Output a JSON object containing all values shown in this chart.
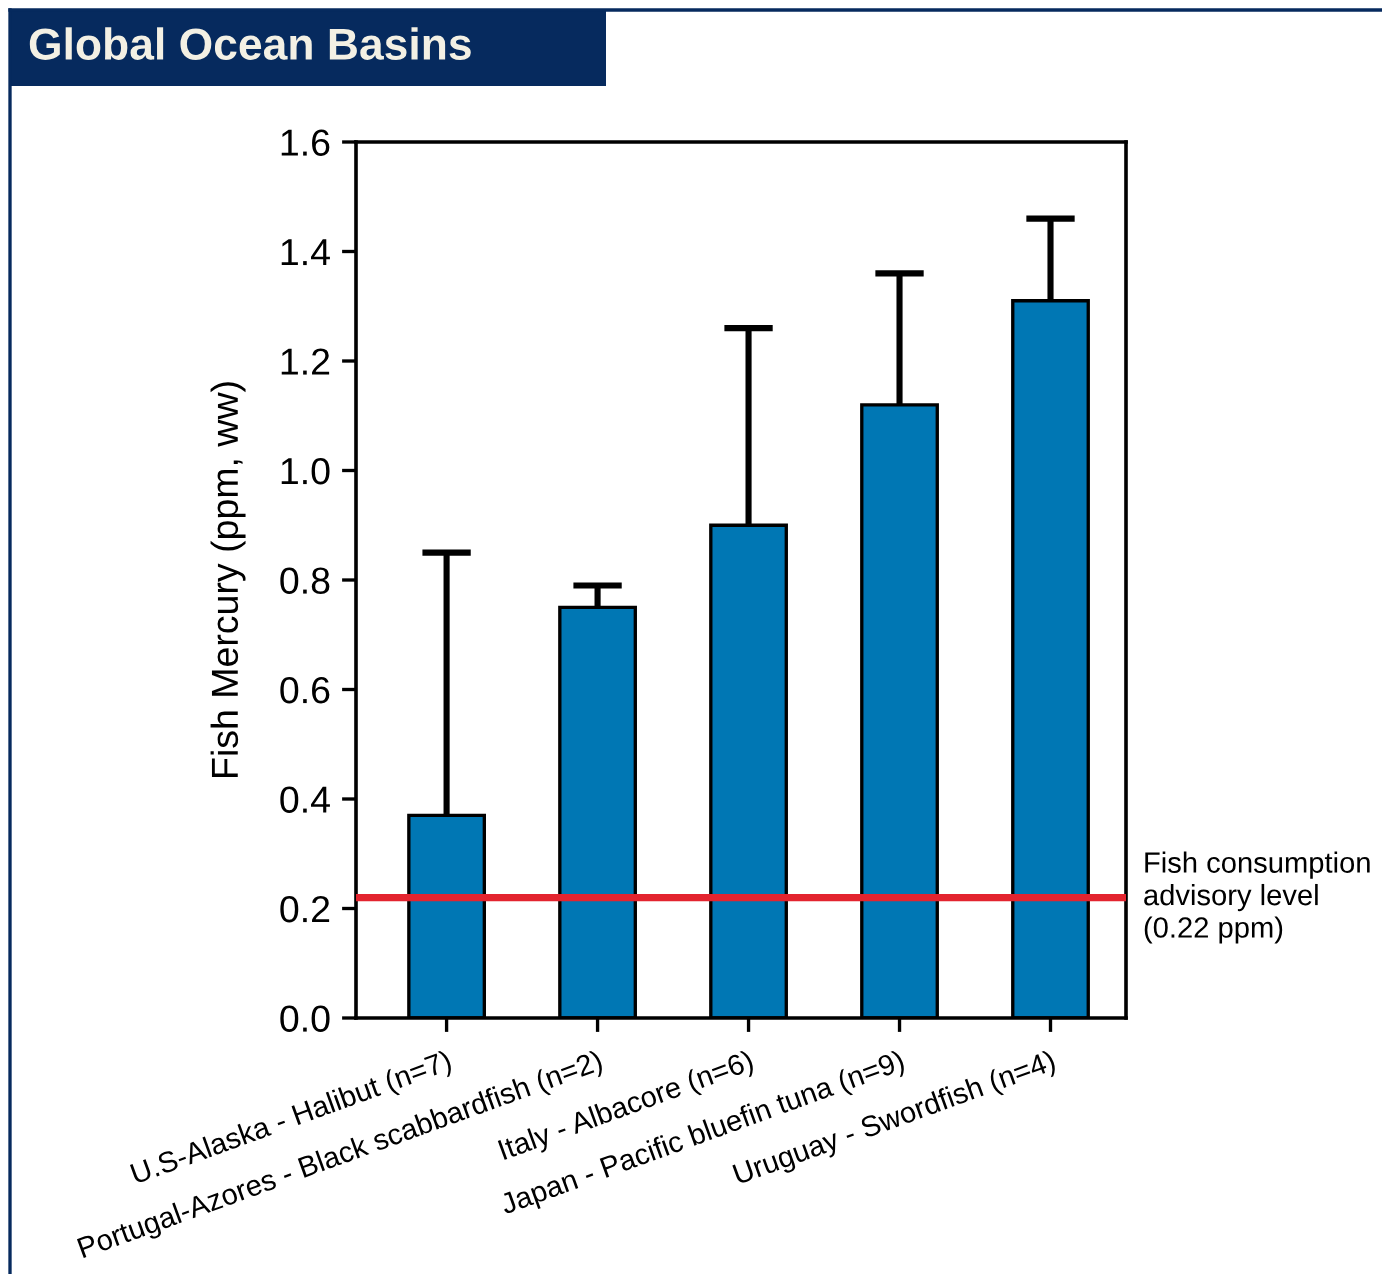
{
  "chart_data": {
    "type": "bar",
    "title": "Global Ocean Basins",
    "ylabel": "Fish Mercury (ppm, ww)",
    "categories": [
      "U.S-Alaska - Halibut (n=7)",
      "Portugal-Azores - Black scabbardfish (n=2)",
      "Italy - Albacore (n=6)",
      "Japan - Pacific bluefin tuna (n=9)",
      "Uruguay - Swordfish (n=4)"
    ],
    "values": [
      0.37,
      0.75,
      0.9,
      1.12,
      1.31
    ],
    "color": "#0077b4",
    "errors": [
      [
        0.37,
        0.85
      ],
      [
        0.75,
        0.79
      ],
      [
        0.9,
        1.26
      ],
      [
        1.12,
        1.36
      ],
      [
        1.31,
        1.46
      ]
    ],
    "ylim": [
      0,
      1.6
    ],
    "yticks": [
      {
        "value": 0,
        "label": "0.0"
      },
      0.2,
      0.4,
      0.6,
      0.8,
      {
        "value": 1,
        "label": "1.0"
      },
      1.2,
      1.4,
      1.6
    ],
    "ref_lines": [
      {
        "axis": "y",
        "value": 0.22,
        "label": "Fish consumption\nadvisory level\n(0.22 ppm)",
        "color": "#e3242f"
      }
    ]
  }
}
